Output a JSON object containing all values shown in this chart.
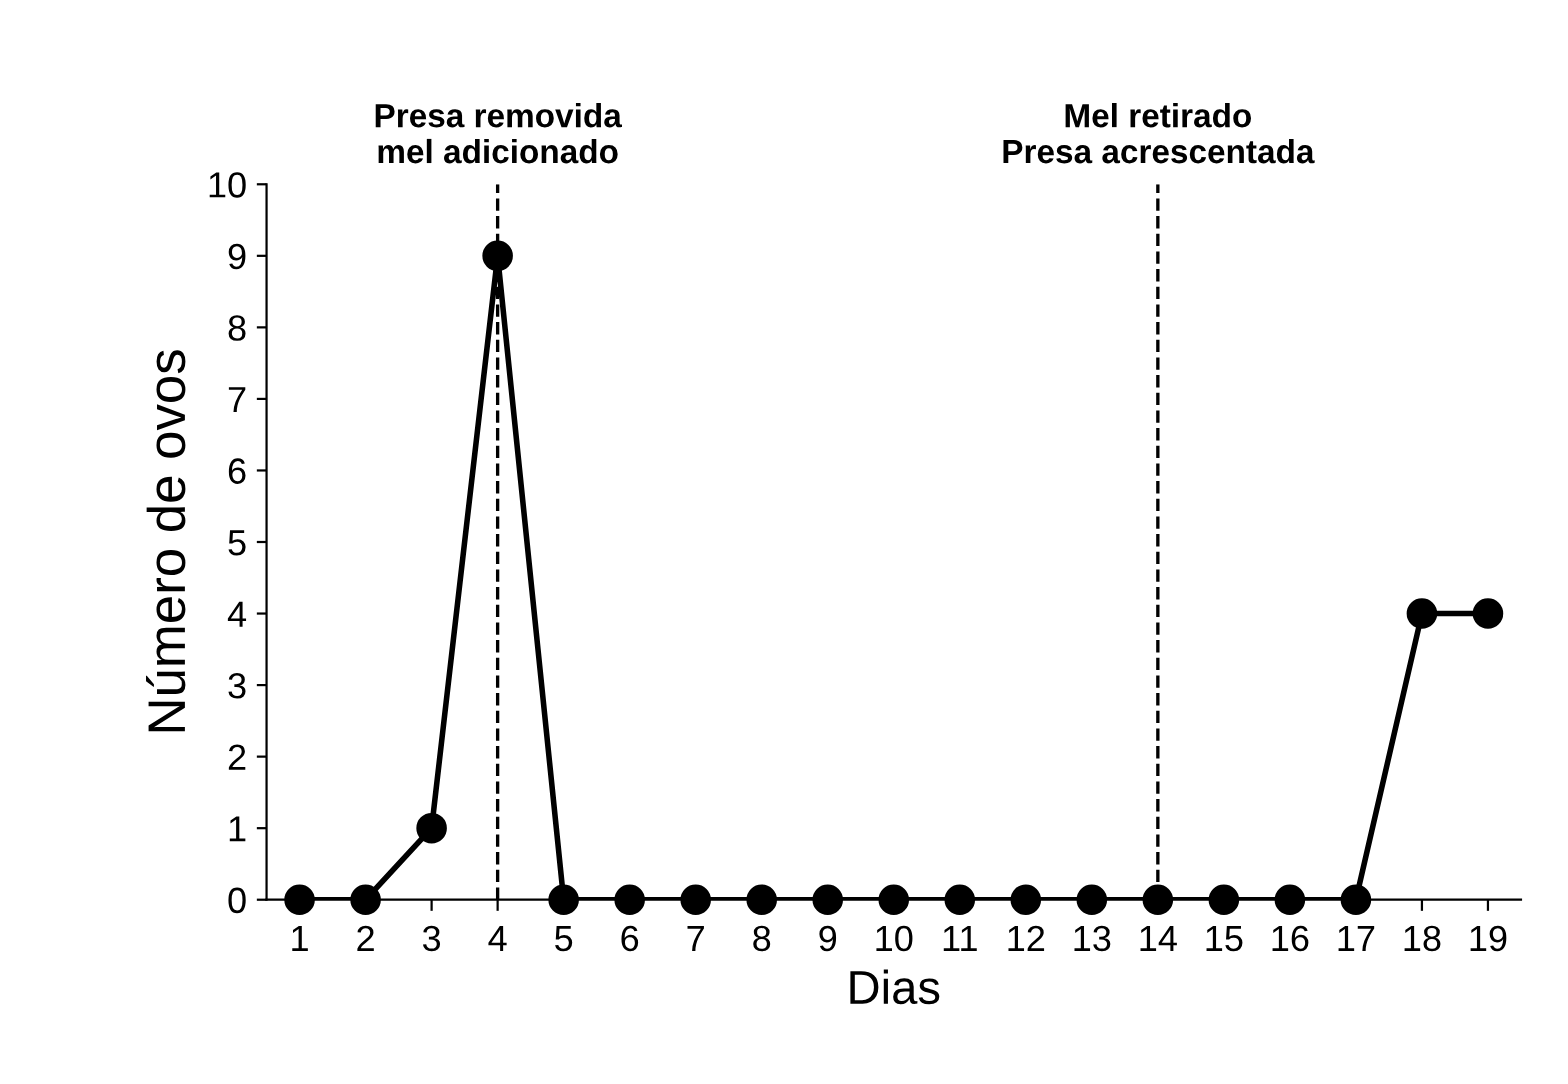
{
  "chart_data": {
    "type": "line",
    "xlabel": "Dias",
    "ylabel": "Número de ovos",
    "x": [
      1,
      2,
      3,
      4,
      5,
      6,
      7,
      8,
      9,
      10,
      11,
      12,
      13,
      14,
      15,
      16,
      17,
      18,
      19
    ],
    "series": [
      {
        "color": "#000000",
        "values": [
          0,
          0,
          1,
          9,
          0,
          0,
          0,
          0,
          0,
          0,
          0,
          0,
          0,
          0,
          0,
          0,
          0,
          4,
          4
        ]
      }
    ],
    "xlim": [
      0.5,
      19.5
    ],
    "xticks": [
      1,
      2,
      3,
      4,
      5,
      6,
      7,
      8,
      9,
      10,
      11,
      12,
      13,
      14,
      15,
      16,
      17,
      18,
      19
    ],
    "ylim": [
      0,
      10
    ],
    "yticks": [
      0,
      1,
      2,
      3,
      4,
      5,
      6,
      7,
      8,
      9,
      10
    ],
    "marker": "circle",
    "line_style": "solid",
    "grid": false,
    "legend": false,
    "ref_lines": [
      {
        "axis": "x",
        "value": 4,
        "label": "Presa removida\nmel adicionado",
        "color": "#000000",
        "line_style": "dashed"
      },
      {
        "axis": "x",
        "value": 14,
        "label": "Mel retirado\nPresa acrescentada",
        "color": "#000000",
        "line_style": "dashed"
      }
    ]
  }
}
